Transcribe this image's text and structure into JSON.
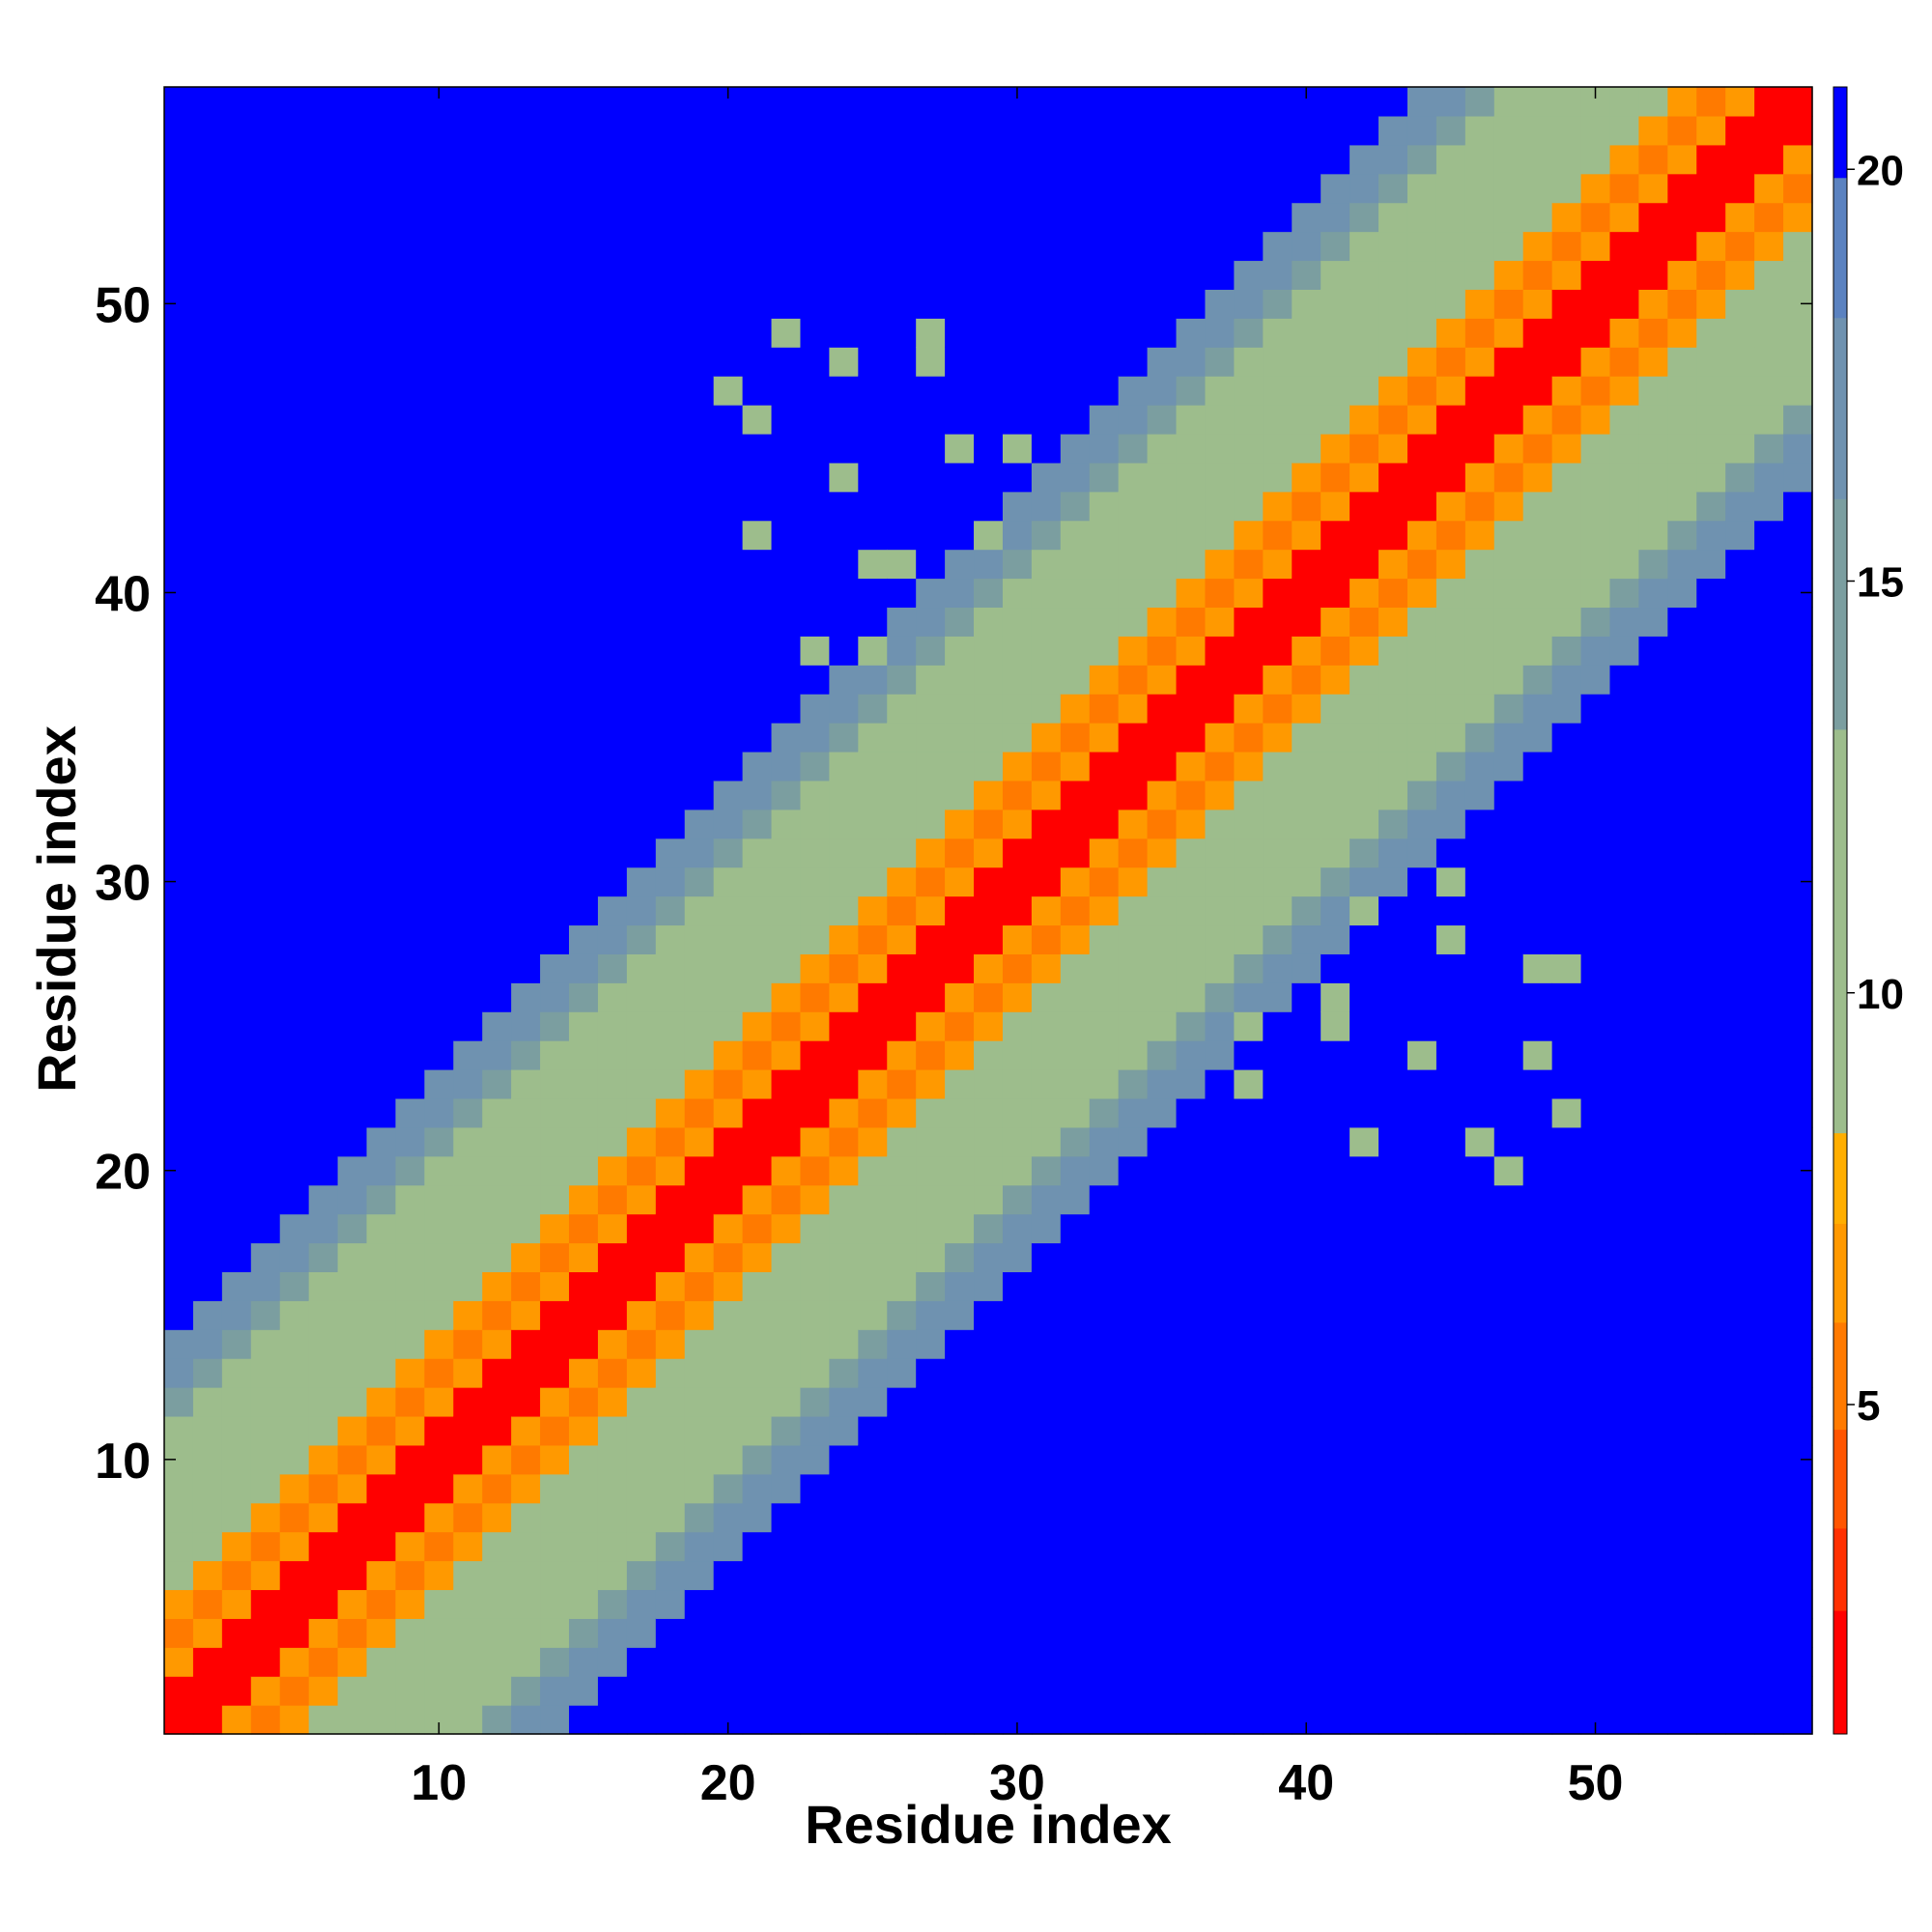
{
  "chart_data": {
    "type": "heatmap",
    "title": "",
    "xlabel": "Residue index",
    "ylabel": "Residue index",
    "n_residues": 57,
    "xlim": [
      0.5,
      57.5
    ],
    "ylim": [
      0.5,
      57.5
    ],
    "x_ticks": [
      10,
      20,
      30,
      40,
      50
    ],
    "y_ticks": [
      10,
      20,
      30,
      40,
      50
    ],
    "colorbar": {
      "ticks": [
        5,
        10,
        15,
        20
      ],
      "range": [
        1,
        21
      ],
      "bins": [
        {
          "min": 1.0,
          "max": 2.5,
          "color": "#ff0000"
        },
        {
          "min": 2.5,
          "max": 3.5,
          "color": "#ff3000"
        },
        {
          "min": 3.5,
          "max": 4.7,
          "color": "#ff5500"
        },
        {
          "min": 4.7,
          "max": 6.0,
          "color": "#ff7a00"
        },
        {
          "min": 6.0,
          "max": 7.2,
          "color": "#ff9900"
        },
        {
          "min": 7.2,
          "max": 8.3,
          "color": "#ffae00"
        },
        {
          "min": 8.3,
          "max": 13.2,
          "color": "#9dbd8c"
        },
        {
          "min": 13.2,
          "max": 16.0,
          "color": "#7b9ea0"
        },
        {
          "min": 16.0,
          "max": 18.2,
          "color": "#6f92b0"
        },
        {
          "min": 18.2,
          "max": 19.9,
          "color": "#5b82c0"
        },
        {
          "min": 19.9,
          "max": 21.0,
          "color": "#0000ff"
        }
      ]
    },
    "band": {
      "diagonal_value": 1,
      "values_by_offset": [
        1,
        1,
        6,
        5,
        6,
        9,
        9,
        9,
        9,
        9,
        13,
        14,
        16,
        18
      ],
      "cutoff_value": 20.5
    },
    "offdiag_contacts": [
      [
        22,
        49,
        10
      ],
      [
        24,
        48,
        10
      ],
      [
        27,
        49,
        10
      ],
      [
        27,
        48,
        10
      ],
      [
        20,
        47,
        10
      ],
      [
        21,
        46,
        10
      ],
      [
        28,
        45,
        10
      ],
      [
        30,
        45,
        10
      ],
      [
        24,
        44,
        10
      ],
      [
        21,
        42,
        10
      ],
      [
        29,
        42,
        10
      ],
      [
        25,
        41,
        10
      ],
      [
        26,
        41,
        10
      ],
      [
        23,
        38,
        10
      ],
      [
        25,
        38,
        10
      ]
    ],
    "colors": {
      "background": "#ffffff",
      "far": "#0000ff"
    }
  }
}
